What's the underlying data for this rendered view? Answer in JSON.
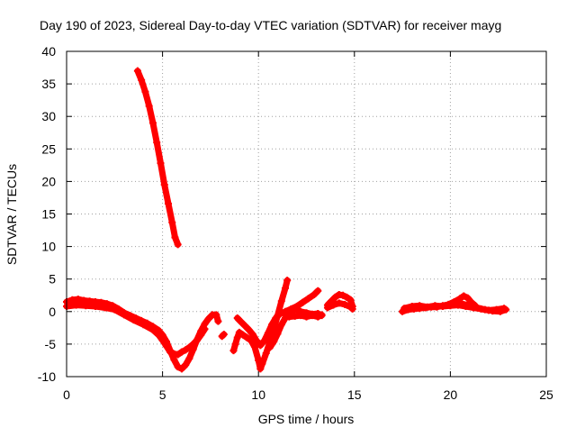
{
  "chart_data": {
    "type": "scatter",
    "title": "Day 190 of 2023, Sidereal Day-to-day VTEC variation (SDTVAR) for receiver mayg",
    "xlabel": "GPS time / hours",
    "ylabel": "SDTVAR / TECUs",
    "xlim": [
      0,
      25
    ],
    "ylim": [
      -10,
      40
    ],
    "x_ticks": [
      0,
      5,
      10,
      15,
      20,
      25
    ],
    "y_ticks": [
      -10,
      -5,
      0,
      5,
      10,
      15,
      20,
      25,
      30,
      35,
      40
    ],
    "grid": true,
    "marker": "+",
    "series": [
      {
        "name": "SDTVAR",
        "color": "#ff0000",
        "segments": [
          {
            "points": [
              [
                0.0,
                1.5
              ],
              [
                0.3,
                1.8
              ],
              [
                0.6,
                1.9
              ],
              [
                0.9,
                1.7
              ],
              [
                1.2,
                1.6
              ],
              [
                1.5,
                1.5
              ],
              [
                1.8,
                1.4
              ],
              [
                2.1,
                1.2
              ],
              [
                2.4,
                0.9
              ],
              [
                2.7,
                0.4
              ],
              [
                3.0,
                -0.2
              ],
              [
                3.3,
                -0.6
              ],
              [
                3.6,
                -1.0
              ],
              [
                3.9,
                -1.4
              ],
              [
                4.2,
                -1.8
              ],
              [
                4.5,
                -2.3
              ],
              [
                4.8,
                -2.9
              ],
              [
                5.0,
                -3.6
              ],
              [
                5.2,
                -4.6
              ],
              [
                5.4,
                -6.0
              ],
              [
                5.6,
                -7.4
              ],
              [
                5.8,
                -8.5
              ],
              [
                6.0,
                -8.8
              ],
              [
                6.2,
                -8.2
              ],
              [
                6.4,
                -7.2
              ],
              [
                6.6,
                -5.8
              ],
              [
                6.8,
                -4.3
              ],
              [
                7.0,
                -3.0
              ],
              [
                7.2,
                -1.9
              ],
              [
                7.4,
                -1.1
              ],
              [
                7.6,
                -0.5
              ],
              [
                7.8,
                -0.5
              ],
              [
                7.9,
                -1.5
              ]
            ]
          },
          {
            "points": [
              [
                0.0,
                0.8
              ],
              [
                0.5,
                1.0
              ],
              [
                1.0,
                0.9
              ],
              [
                1.5,
                0.8
              ],
              [
                2.0,
                0.6
              ],
              [
                2.5,
                0.3
              ],
              [
                3.0,
                -0.5
              ],
              [
                3.5,
                -1.3
              ],
              [
                4.0,
                -2.0
              ],
              [
                4.5,
                -2.8
              ],
              [
                4.8,
                -3.6
              ],
              [
                5.0,
                -4.4
              ],
              [
                5.2,
                -5.3
              ],
              [
                5.4,
                -6.2
              ],
              [
                5.6,
                -6.5
              ],
              [
                5.8,
                -6.6
              ],
              [
                6.0,
                -6.2
              ],
              [
                6.2,
                -5.9
              ],
              [
                6.4,
                -5.5
              ],
              [
                6.6,
                -5.0
              ],
              [
                6.8,
                -4.4
              ],
              [
                7.0,
                -3.6
              ],
              [
                7.2,
                -2.7
              ]
            ]
          },
          {
            "points": [
              [
                3.7,
                37.0
              ],
              [
                3.9,
                35.6
              ],
              [
                4.1,
                33.8
              ],
              [
                4.3,
                31.6
              ],
              [
                4.5,
                29.0
              ],
              [
                4.7,
                26.0
              ],
              [
                4.9,
                22.8
              ],
              [
                5.1,
                19.5
              ],
              [
                5.3,
                16.6
              ],
              [
                5.5,
                13.7
              ],
              [
                5.65,
                11.4
              ],
              [
                5.8,
                10.3
              ]
            ]
          },
          {
            "points": [
              [
                8.1,
                -3.8
              ],
              [
                8.2,
                -3.5
              ]
            ]
          },
          {
            "points": [
              [
                8.7,
                -6.0
              ],
              [
                8.8,
                -5.0
              ],
              [
                8.9,
                -4.0
              ],
              [
                9.0,
                -3.2
              ],
              [
                9.2,
                -3.6
              ],
              [
                9.4,
                -4.0
              ],
              [
                9.6,
                -4.4
              ],
              [
                9.8,
                -5.4
              ],
              [
                10.0,
                -7.5
              ],
              [
                10.1,
                -8.8
              ],
              [
                10.2,
                -8.0
              ],
              [
                10.4,
                -6.4
              ],
              [
                10.6,
                -4.6
              ],
              [
                10.8,
                -2.6
              ],
              [
                11.0,
                -0.6
              ],
              [
                11.2,
                1.6
              ],
              [
                11.4,
                3.6
              ],
              [
                11.5,
                4.8
              ]
            ]
          },
          {
            "points": [
              [
                8.9,
                -1.0
              ],
              [
                9.1,
                -1.6
              ],
              [
                9.3,
                -2.2
              ],
              [
                9.5,
                -2.8
              ],
              [
                9.7,
                -3.5
              ],
              [
                9.9,
                -4.5
              ],
              [
                10.1,
                -5.2
              ],
              [
                10.3,
                -4.5
              ],
              [
                10.5,
                -3.3
              ],
              [
                10.7,
                -2.0
              ],
              [
                10.9,
                -1.0
              ],
              [
                11.1,
                -0.4
              ],
              [
                11.4,
                0.0
              ],
              [
                11.7,
                0.4
              ],
              [
                12.0,
                0.8
              ],
              [
                12.3,
                1.4
              ],
              [
                12.6,
                2.0
              ],
              [
                12.9,
                2.6
              ],
              [
                13.1,
                3.2
              ]
            ]
          },
          {
            "points": [
              [
                10.6,
                -5.5
              ],
              [
                10.8,
                -4.6
              ],
              [
                11.0,
                -3.4
              ],
              [
                11.2,
                -2.0
              ],
              [
                11.4,
                -1.0
              ],
              [
                11.6,
                -0.2
              ],
              [
                11.9,
                0.4
              ],
              [
                12.2,
                0.0
              ],
              [
                12.5,
                -0.2
              ],
              [
                12.8,
                -0.4
              ],
              [
                13.1,
                -0.3
              ],
              [
                13.3,
                -0.6
              ]
            ]
          },
          {
            "points": [
              [
                11.6,
                -0.8
              ],
              [
                11.9,
                -0.7
              ],
              [
                12.2,
                -0.6
              ],
              [
                12.5,
                -0.8
              ],
              [
                12.8,
                -0.6
              ],
              [
                13.1,
                -0.8
              ],
              [
                13.3,
                -0.5
              ]
            ]
          },
          {
            "points": [
              [
                13.6,
                1.0
              ],
              [
                13.8,
                1.6
              ],
              [
                14.0,
                2.2
              ],
              [
                14.2,
                2.6
              ],
              [
                14.4,
                2.5
              ],
              [
                14.6,
                2.2
              ],
              [
                14.8,
                1.8
              ],
              [
                14.9,
                0.8
              ]
            ]
          },
          {
            "points": [
              [
                13.6,
                0.6
              ],
              [
                13.9,
                1.0
              ],
              [
                14.2,
                1.3
              ],
              [
                14.5,
                1.1
              ],
              [
                14.8,
                0.7
              ],
              [
                14.9,
                0.4
              ]
            ]
          },
          {
            "points": [
              [
                17.5,
                0.0
              ],
              [
                17.8,
                0.3
              ],
              [
                18.1,
                0.4
              ],
              [
                18.4,
                0.5
              ],
              [
                18.7,
                0.6
              ],
              [
                19.0,
                0.7
              ],
              [
                19.3,
                0.7
              ],
              [
                19.6,
                0.9
              ],
              [
                19.9,
                1.1
              ],
              [
                20.2,
                1.5
              ],
              [
                20.5,
                2.0
              ],
              [
                20.7,
                2.4
              ],
              [
                20.9,
                2.1
              ],
              [
                21.1,
                1.4
              ],
              [
                21.3,
                0.9
              ]
            ]
          },
          {
            "points": [
              [
                17.6,
                0.5
              ],
              [
                18.0,
                0.8
              ],
              [
                18.4,
                0.9
              ],
              [
                18.8,
                0.7
              ],
              [
                19.2,
                0.9
              ],
              [
                19.6,
                0.8
              ],
              [
                20.0,
                0.9
              ],
              [
                20.4,
                1.0
              ],
              [
                20.8,
                0.8
              ],
              [
                21.2,
                0.6
              ],
              [
                21.6,
                0.4
              ],
              [
                22.0,
                0.2
              ],
              [
                22.4,
                0.3
              ],
              [
                22.8,
                0.5
              ]
            ]
          },
          {
            "points": [
              [
                20.6,
                1.2
              ],
              [
                21.0,
                0.9
              ],
              [
                21.4,
                0.6
              ],
              [
                21.8,
                0.3
              ],
              [
                22.2,
                0.1
              ],
              [
                22.6,
                0.0
              ],
              [
                22.9,
                0.3
              ]
            ]
          }
        ]
      }
    ]
  }
}
